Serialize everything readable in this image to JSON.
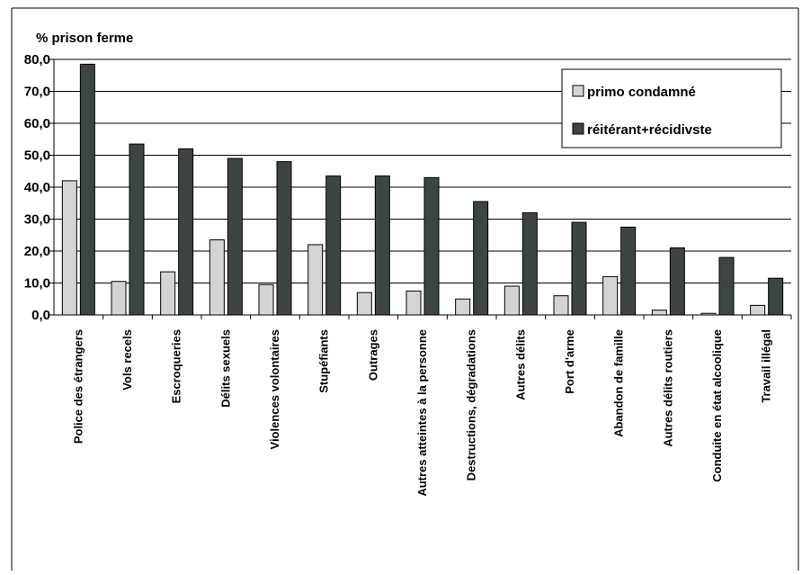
{
  "chart_data": {
    "type": "bar",
    "ylabel": "% prison ferme",
    "xlabel": "",
    "ylim": [
      0,
      80
    ],
    "y_ticks": [
      "0,0",
      "10,0",
      "20,0",
      "30,0",
      "40,0",
      "50,0",
      "60,0",
      "70,0",
      "80,0"
    ],
    "grid": true,
    "legend_position": "top-right",
    "categories": [
      "Police des étrangers",
      "Vols recels",
      "Escroqueries",
      "Délits sexuels",
      "Violences volontaires",
      "Stupéfiants",
      "Outrages",
      "Autres atteintes à la personne",
      "Destructions, dégradations",
      "Autres délits",
      "Port d'arme",
      "Abandon de famille",
      "Autres délits routiers",
      "Conduite en état alcoolique",
      "Travail illégal"
    ],
    "series": [
      {
        "name": "primo condamné",
        "color": "#d4d4d4",
        "values": [
          42.0,
          10.5,
          13.5,
          23.5,
          9.5,
          22.0,
          7.0,
          7.5,
          5.0,
          9.0,
          6.0,
          12.0,
          1.5,
          0.5,
          3.0
        ]
      },
      {
        "name": "réitérant+récidivste",
        "color": "#3d4543",
        "values": [
          78.5,
          53.5,
          52.0,
          49.0,
          48.0,
          43.5,
          43.5,
          43.0,
          35.5,
          32.0,
          29.0,
          27.5,
          21.0,
          18.0,
          11.5
        ]
      }
    ]
  }
}
